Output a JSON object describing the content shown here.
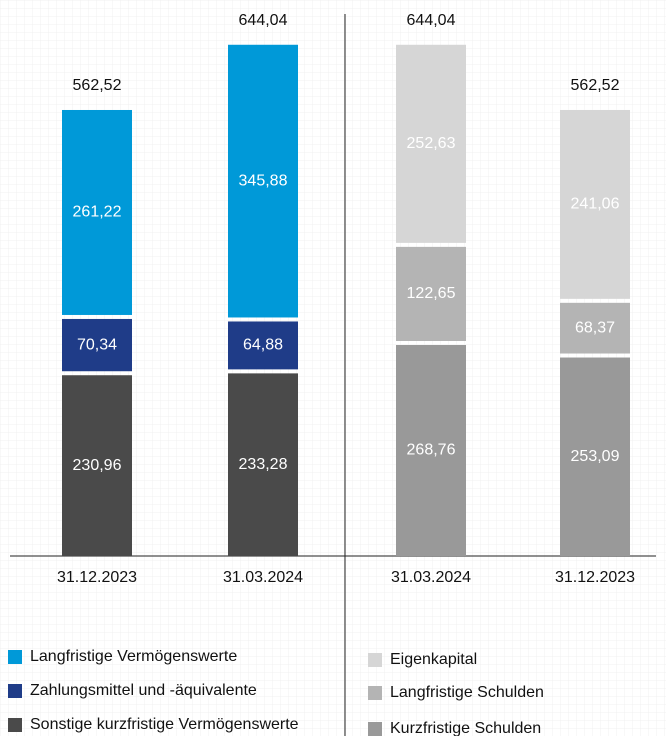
{
  "chart_data": [
    {
      "type": "bar",
      "stacked": true,
      "categories": [
        "31.12.2023",
        "31.03.2024"
      ],
      "series": [
        {
          "name": "Sonstige kurzfristige Vermögenswerte",
          "color": "#4a4a4a",
          "values": [
            230.96,
            233.28
          ],
          "value_labels": [
            "230,96",
            "233,28"
          ]
        },
        {
          "name": "Zahlungsmittel und -äquivalente",
          "color": "#1f3c88",
          "values": [
            70.34,
            64.88
          ],
          "value_labels": [
            "70,34",
            "64,88"
          ]
        },
        {
          "name": "Langfristige Vermögenswerte",
          "color": "#0099d8",
          "values": [
            261.22,
            345.88
          ],
          "value_labels": [
            "261,22",
            "345,88"
          ]
        }
      ],
      "totals": [
        562.52,
        644.04
      ],
      "total_labels": [
        "562,52",
        "644,04"
      ]
    },
    {
      "type": "bar",
      "stacked": true,
      "categories": [
        "31.03.2024",
        "31.12.2023"
      ],
      "series": [
        {
          "name": "Kurzfristige Schulden",
          "color": "#999999",
          "values": [
            268.76,
            253.09
          ],
          "value_labels": [
            "268,76",
            "253,09"
          ]
        },
        {
          "name": "Langfristige Schulden",
          "color": "#b4b4b4",
          "values": [
            122.65,
            68.37
          ],
          "value_labels": [
            "122,65",
            "68,37"
          ]
        },
        {
          "name": "Eigenkapital",
          "color": "#d6d6d6",
          "values": [
            252.63,
            241.06
          ],
          "value_labels": [
            "252,63",
            "241,06"
          ]
        }
      ],
      "totals": [
        644.04,
        562.52
      ],
      "total_labels": [
        "644,04",
        "562,52"
      ]
    }
  ]
}
